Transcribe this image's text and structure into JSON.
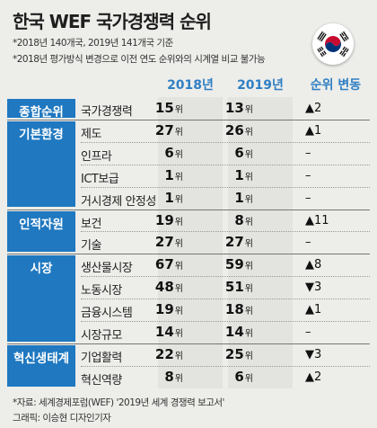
{
  "title": "한국 WEF 국가경쟁력 순위",
  "notes": [
    "*2018년 140개국, 2019년 141개국 기준",
    "*2018년 평가방식 변경으로 이전 연도 순위와의 시계열 비교 불가능"
  ],
  "footer": [
    "*자료: 세계경제포럼(WEF) '2019년 세계 경쟁력 보고서'",
    "그래픽: 이승현 디자인기자"
  ],
  "flag_icon": "korean-flag-icon",
  "colors": {
    "category_bg": "#1f78c0",
    "header_text": "#2f7fc3",
    "column_bg": "#e3e3df",
    "page_bg": "#ededea"
  },
  "chart_data": {
    "type": "table",
    "columns": [
      "2018년",
      "2019년",
      "순위 변동"
    ],
    "unit": "위",
    "groups": [
      {
        "category": "종합순위",
        "rows": [
          {
            "item": "국가경쟁력",
            "y2018": 15,
            "y2019": 13,
            "change": "▲2"
          }
        ]
      },
      {
        "category": "기본환경",
        "rows": [
          {
            "item": "제도",
            "y2018": 27,
            "y2019": 26,
            "change": "▲1"
          },
          {
            "item": "인프라",
            "y2018": 6,
            "y2019": 6,
            "change": "–"
          },
          {
            "item": "ICT보급",
            "y2018": 1,
            "y2019": 1,
            "change": "–"
          },
          {
            "item": "거시경제 안정성",
            "y2018": 1,
            "y2019": 1,
            "change": "–"
          }
        ]
      },
      {
        "category": "인적자원",
        "rows": [
          {
            "item": "보건",
            "y2018": 19,
            "y2019": 8,
            "change": "▲11"
          },
          {
            "item": "기술",
            "y2018": 27,
            "y2019": 27,
            "change": "–"
          }
        ]
      },
      {
        "category": "시장",
        "rows": [
          {
            "item": "생산물시장",
            "y2018": 67,
            "y2019": 59,
            "change": "▲8"
          },
          {
            "item": "노동시장",
            "y2018": 48,
            "y2019": 51,
            "change": "▼3"
          },
          {
            "item": "금융시스템",
            "y2018": 19,
            "y2019": 18,
            "change": "▲1"
          },
          {
            "item": "시장규모",
            "y2018": 14,
            "y2019": 14,
            "change": "–"
          }
        ]
      },
      {
        "category": "혁신생태계",
        "rows": [
          {
            "item": "기업활력",
            "y2018": 22,
            "y2019": 25,
            "change": "▼3"
          },
          {
            "item": "혁신역량",
            "y2018": 8,
            "y2019": 6,
            "change": "▲2"
          }
        ]
      }
    ]
  }
}
